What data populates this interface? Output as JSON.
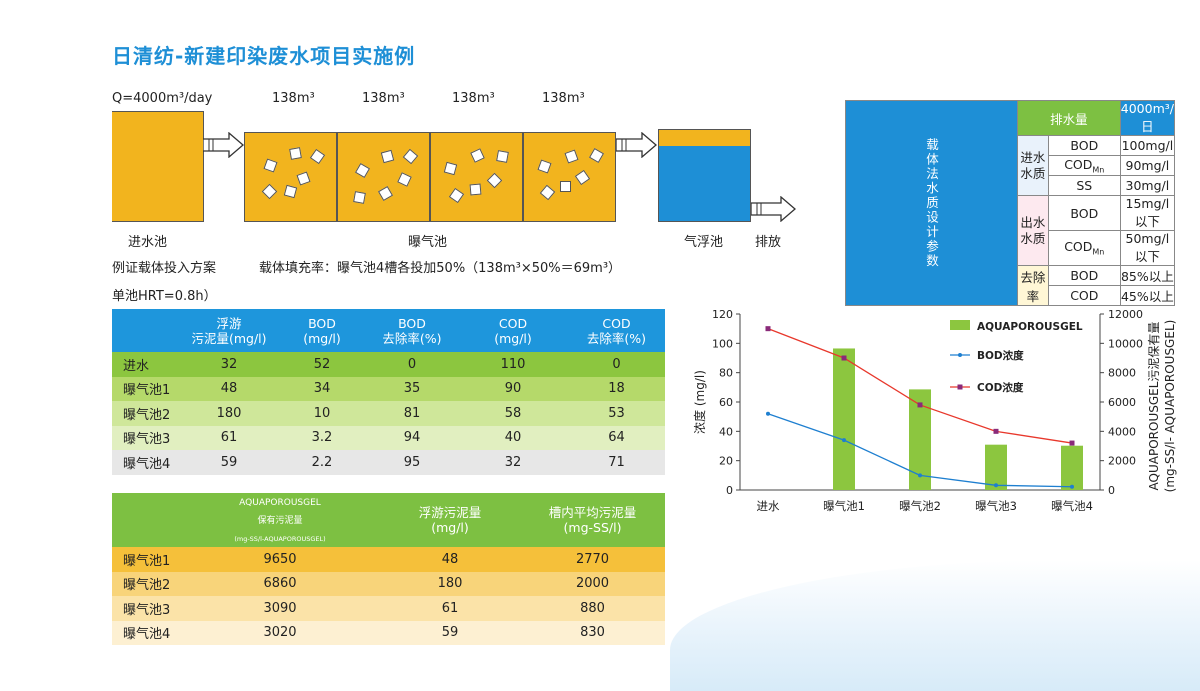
{
  "title": "日清纺-新建印染废水项目实施例",
  "flow": {
    "q_label": "Q=4000m³/day",
    "volumes": [
      "138m³",
      "138m³",
      "138m³",
      "138m³"
    ],
    "labels": {
      "inlet": "进水池",
      "aeration": "曝气池",
      "flotation": "气浮池",
      "discharge": "排放"
    },
    "note1": "例证载体投入方案",
    "note2": "载体填充率：曝气池4槽各投加50%（138m³×50%＝69m³）",
    "note3": "单池HRT=0.8h）"
  },
  "param_table": {
    "side_label": "载体法水质设计参数",
    "header": {
      "label": "排水量",
      "value": "4000m³/日"
    },
    "groups": [
      {
        "name": "进水\n水质",
        "rows": [
          {
            "item": "BOD",
            "sub": "",
            "value": "100mg/l"
          },
          {
            "item": "COD",
            "sub": "Mn",
            "value": "90mg/l"
          },
          {
            "item": "SS",
            "sub": "",
            "value": "30mg/l"
          }
        ]
      },
      {
        "name": "出水\n水质",
        "rows": [
          {
            "item": "BOD",
            "sub": "",
            "value": "15mg/l以下"
          },
          {
            "item": "COD",
            "sub": "Mn",
            "value": "50mg/l以下"
          }
        ]
      },
      {
        "name": "去除率",
        "rows": [
          {
            "item": "BOD",
            "sub": "",
            "value": "85%以上"
          },
          {
            "item": "COD",
            "sub": "",
            "value": "45%以上"
          }
        ]
      }
    ]
  },
  "table1": {
    "headers": [
      [
        "",
        ""
      ],
      [
        "浮游",
        "污泥量(mg/l)"
      ],
      [
        "BOD",
        "(mg/l)"
      ],
      [
        "BOD",
        "去除率(%)"
      ],
      [
        "COD",
        "(mg/l)"
      ],
      [
        "COD",
        "去除率(%)"
      ]
    ],
    "rows": [
      [
        "进水",
        "32",
        "52",
        "0",
        "110",
        "0"
      ],
      [
        "曝气池1",
        "48",
        "34",
        "35",
        "90",
        "18"
      ],
      [
        "曝气池2",
        "180",
        "10",
        "81",
        "58",
        "53"
      ],
      [
        "曝气池3",
        "61",
        "3.2",
        "94",
        "40",
        "64"
      ],
      [
        "曝气池4",
        "59",
        "2.2",
        "95",
        "32",
        "71"
      ]
    ],
    "row_colors": [
      "#8cc63f",
      "#b5d96a",
      "#cfe79a",
      "#e1efc0",
      "#e7e7e7"
    ]
  },
  "table2": {
    "headers": [
      [
        "",
        ""
      ],
      [
        "AQUAPOROUSGEL",
        "保有污泥量",
        "(mg-SS/l-AQUAPOROUSGEL)"
      ],
      [
        "浮游污泥量",
        "(mg/l)"
      ],
      [
        "槽内平均污泥量",
        "(mg-SS/l)"
      ]
    ],
    "rows": [
      [
        "曝气池1",
        "9650",
        "48",
        "2770"
      ],
      [
        "曝气池2",
        "6860",
        "180",
        "2000"
      ],
      [
        "曝气池3",
        "3090",
        "61",
        "880"
      ],
      [
        "曝气池4",
        "3020",
        "59",
        "830"
      ]
    ],
    "row_colors": [
      "#f5c03a",
      "#f8d47a",
      "#fbe3a8",
      "#fdf0d2"
    ]
  },
  "chart_data": {
    "type": "bar",
    "categories": [
      "进水",
      "曝气池1",
      "曝气池2",
      "曝气池3",
      "曝气池4"
    ],
    "ylabel": "浓度 (mg/l)",
    "y2label": "AQUAPOROUSGEL污泥保有量",
    "y2label_b": "(mg-SS/l- AQUAPOROUSGEL)",
    "ylim": [
      0,
      120
    ],
    "y2lim": [
      0,
      12000
    ],
    "yticks": [
      0,
      20,
      40,
      60,
      80,
      100,
      120
    ],
    "y2ticks": [
      0,
      2000,
      4000,
      6000,
      8000,
      10000,
      12000
    ],
    "series": [
      {
        "name": "AQUAPOROUSGEL",
        "type": "bar",
        "axis": "right",
        "values": [
          null,
          9650,
          6860,
          3090,
          3020
        ],
        "color": "#8cc63f"
      },
      {
        "name": "BOD浓度",
        "type": "line",
        "axis": "left",
        "values": [
          52,
          34,
          10,
          3.2,
          2.2
        ],
        "color": "#1e7fd0"
      },
      {
        "name": "COD浓度",
        "type": "line",
        "axis": "left",
        "values": [
          110,
          90,
          58,
          40,
          32
        ],
        "color": "#e8382c"
      }
    ],
    "legend_position": "top-right"
  }
}
